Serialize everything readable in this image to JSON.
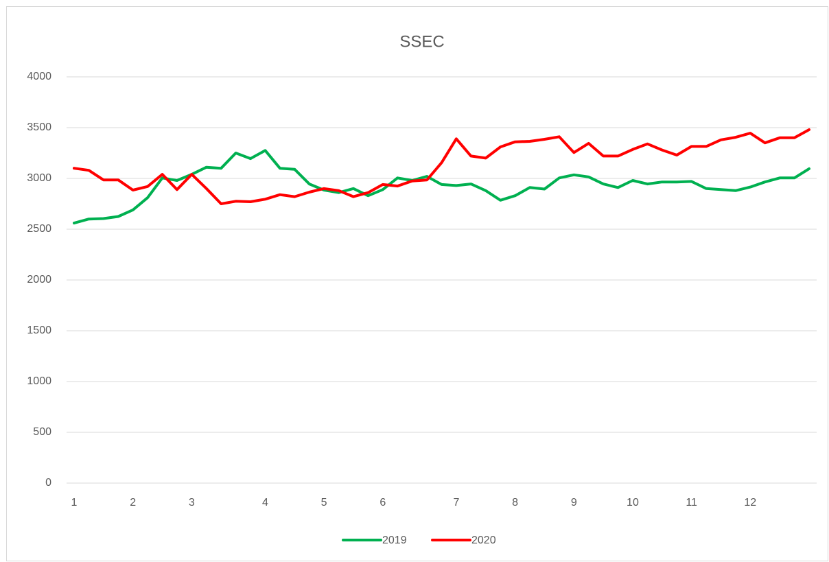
{
  "chart_data": {
    "type": "line",
    "title": "SSEC",
    "categories": [
      "1",
      null,
      null,
      null,
      "2",
      null,
      null,
      null,
      "3",
      null,
      null,
      null,
      null,
      "4",
      null,
      null,
      null,
      "5",
      null,
      null,
      null,
      "6",
      null,
      null,
      null,
      null,
      "7",
      null,
      null,
      null,
      "8",
      null,
      null,
      null,
      "9",
      null,
      null,
      null,
      "10",
      null,
      null,
      null,
      "11",
      null,
      null,
      null,
      "12",
      null,
      null,
      null,
      null
    ],
    "series": [
      {
        "name": "2019",
        "color": "#00b050",
        "values": [
          2560,
          2600,
          2605,
          2625,
          2690,
          2810,
          3005,
          2980,
          3040,
          3110,
          3100,
          3250,
          3195,
          3275,
          3100,
          3090,
          2945,
          2885,
          2860,
          2900,
          2830,
          2890,
          3005,
          2980,
          3020,
          2940,
          2930,
          2945,
          2880,
          2785,
          2830,
          2910,
          2895,
          3005,
          3035,
          3015,
          2945,
          2910,
          2980,
          2945,
          2965,
          2965,
          2970,
          2900,
          2890,
          2880,
          2915,
          2965,
          3005,
          3005,
          3095
        ]
      },
      {
        "name": "2020",
        "color": "#ff0000",
        "values": [
          3100,
          3080,
          2985,
          2985,
          2885,
          2920,
          3040,
          2890,
          3040,
          2900,
          2750,
          2775,
          2770,
          2795,
          2840,
          2820,
          2865,
          2900,
          2880,
          2820,
          2860,
          2940,
          2925,
          2975,
          2985,
          3155,
          3390,
          3220,
          3200,
          3310,
          3360,
          3365,
          3385,
          3410,
          3255,
          3345,
          3220,
          3220,
          3285,
          3340,
          3280,
          3230,
          3315,
          3315,
          3380,
          3405,
          3445,
          3350,
          3400,
          3400,
          3480
        ]
      }
    ],
    "ylim": [
      0,
      4000
    ],
    "yticks": [
      0,
      500,
      1000,
      1500,
      2000,
      2500,
      3000,
      3500,
      4000
    ],
    "grid": true,
    "legend": "bottom"
  }
}
